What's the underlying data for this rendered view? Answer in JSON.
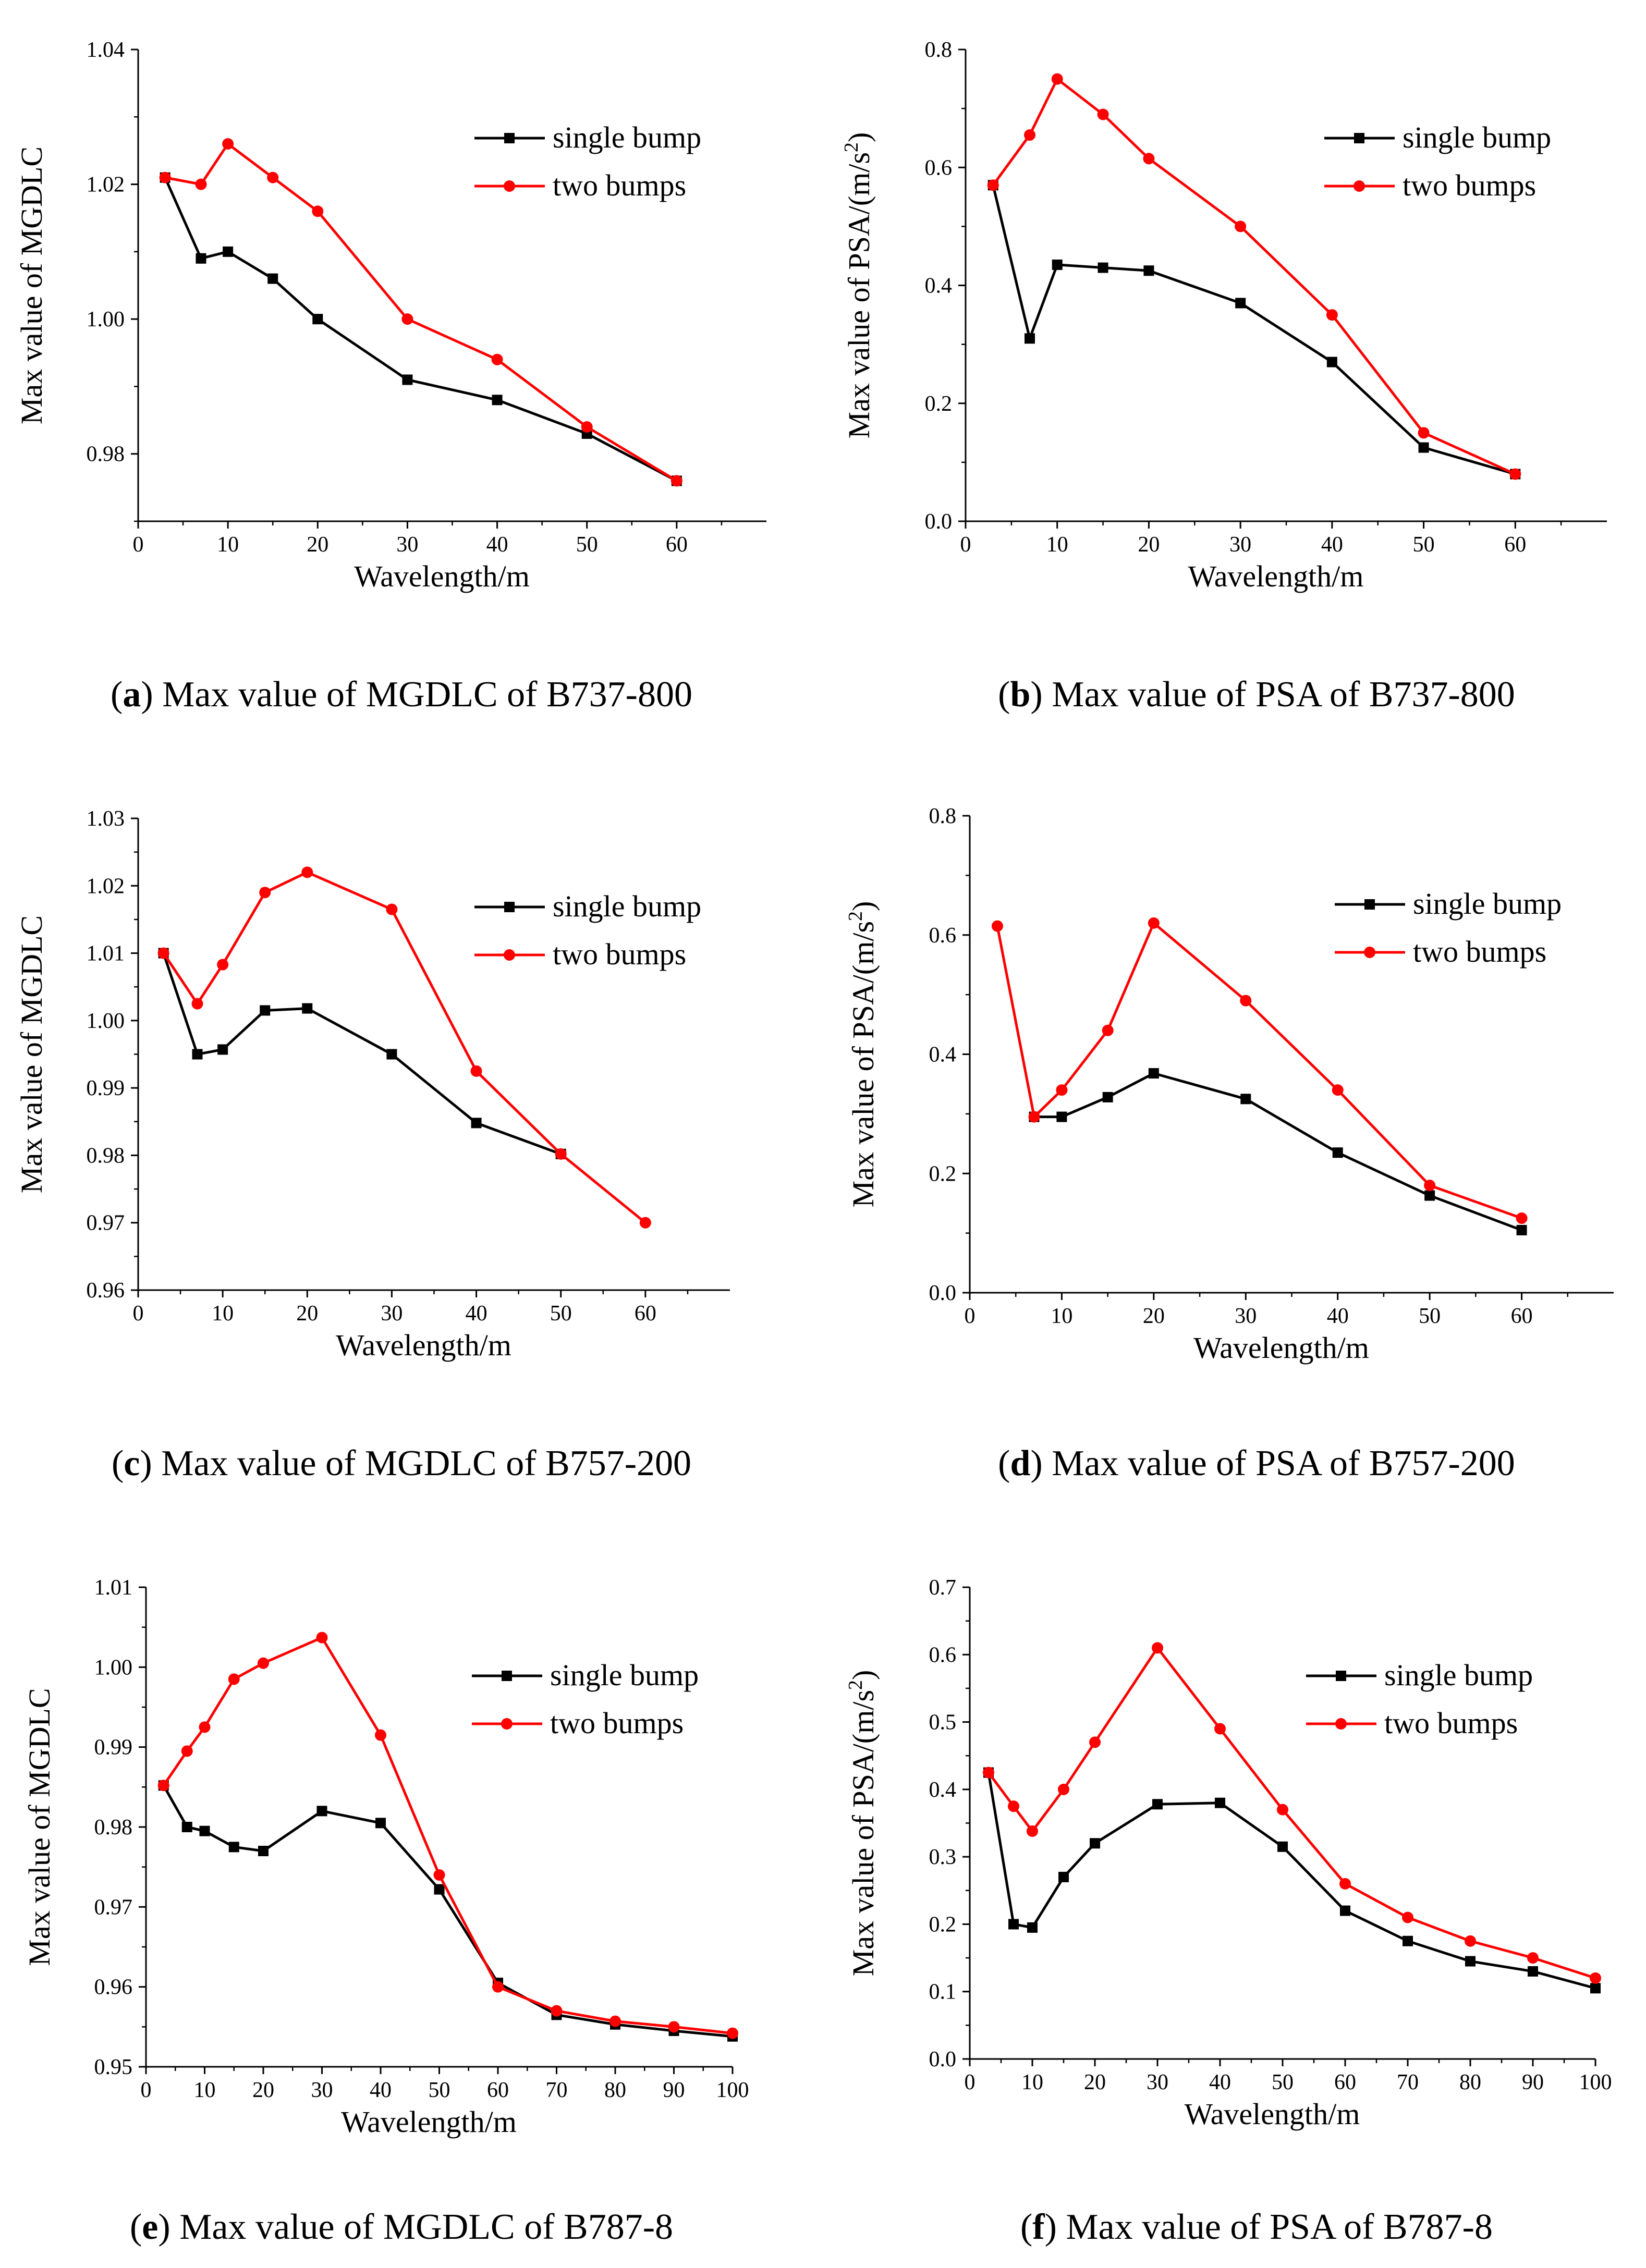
{
  "colors": {
    "single": "#000000",
    "two": "#ff0000",
    "axis": "#000000"
  },
  "chart_data": [
    {
      "id": "a",
      "type": "line",
      "caption_letter": "a",
      "caption_text": " Max value of MGDLC of B737-800",
      "xlabel": "Wavelength/m",
      "ylabel": "Max value of MGDLC",
      "xlim": [
        0,
        70
      ],
      "ylim": [
        0.97,
        1.04
      ],
      "xticks": [
        0,
        10,
        20,
        30,
        40,
        50,
        60
      ],
      "xtick_labels": [
        "0",
        "10",
        "20",
        "30",
        "40",
        "50",
        "60"
      ],
      "yticks": [
        0.98,
        1.0,
        1.02,
        1.04
      ],
      "ytick_labels": [
        "0.98",
        "1.00",
        "1.02",
        "1.04"
      ],
      "legend": {
        "position": "top-right",
        "entries": [
          "single bump",
          "two bumps"
        ]
      },
      "series": [
        {
          "name": "single bump",
          "marker": "square",
          "x": [
            3,
            7,
            10,
            15,
            20,
            30,
            40,
            50,
            60
          ],
          "y": [
            1.021,
            1.009,
            1.01,
            1.006,
            1.0,
            0.991,
            0.988,
            0.983,
            0.976
          ]
        },
        {
          "name": "two bumps",
          "marker": "circle",
          "x": [
            3,
            7,
            10,
            15,
            20,
            30,
            40,
            50,
            60
          ],
          "y": [
            1.021,
            1.02,
            1.026,
            1.021,
            1.016,
            1.0,
            0.994,
            0.984,
            0.976
          ]
        }
      ]
    },
    {
      "id": "b",
      "type": "line",
      "caption_letter": "b",
      "caption_text": " Max value of PSA of B737-800",
      "xlabel": "Wavelength/m",
      "ylabel": "Max value of PSA/(m/s",
      "ylabel_sup": "2",
      "ylabel_end": ")",
      "xlim": [
        0,
        70
      ],
      "ylim": [
        0,
        0.8
      ],
      "xticks": [
        0,
        10,
        20,
        30,
        40,
        50,
        60
      ],
      "xtick_labels": [
        "0",
        "10",
        "20",
        "30",
        "40",
        "50",
        "60"
      ],
      "yticks": [
        0,
        0.2,
        0.4,
        0.6,
        0.8
      ],
      "ytick_labels": [
        "0.0",
        "0.2",
        "0.4",
        "0.6",
        "0.8"
      ],
      "legend": {
        "position": "top-right",
        "entries": [
          "single bump",
          "two bumps"
        ]
      },
      "series": [
        {
          "name": "single bump",
          "marker": "square",
          "x": [
            3,
            7,
            10,
            15,
            20,
            30,
            40,
            50,
            60
          ],
          "y": [
            0.57,
            0.31,
            0.435,
            0.43,
            0.425,
            0.37,
            0.27,
            0.125,
            0.08
          ]
        },
        {
          "name": "two bumps",
          "marker": "circle",
          "x": [
            3,
            7,
            10,
            15,
            20,
            30,
            40,
            50,
            60
          ],
          "y": [
            0.57,
            0.655,
            0.75,
            0.69,
            0.615,
            0.5,
            0.35,
            0.15,
            0.08
          ]
        }
      ]
    },
    {
      "id": "c",
      "type": "line",
      "caption_letter": "c",
      "caption_text": " Max value of MGDLC of B757-200",
      "xlabel": "Wavelength/m",
      "ylabel": "Max value of MGDLC",
      "xlim": [
        0,
        70
      ],
      "ylim": [
        0.96,
        1.03
      ],
      "xticks": [
        0,
        10,
        20,
        30,
        40,
        50,
        60
      ],
      "xtick_labels": [
        "0",
        "10",
        "20",
        "30",
        "40",
        "50",
        "60"
      ],
      "yticks": [
        0.96,
        0.97,
        0.98,
        0.99,
        1.0,
        1.01,
        1.02,
        1.03
      ],
      "ytick_labels": [
        "0.96",
        "0.97",
        "0.98",
        "0.99",
        "1.00",
        "1.01",
        "1.02",
        "1.03"
      ],
      "legend": {
        "position": "top-right",
        "entries": [
          "single bump",
          "two bumps"
        ]
      },
      "series": [
        {
          "name": "single bump",
          "marker": "square",
          "x": [
            3,
            7,
            10,
            15,
            20,
            30,
            40,
            50
          ],
          "y": [
            1.01,
            0.995,
            0.9957,
            1.0015,
            1.0018,
            0.995,
            0.9848,
            0.9802
          ]
        },
        {
          "name": "two bumps",
          "marker": "circle",
          "x": [
            3,
            7,
            10,
            15,
            20,
            30,
            40,
            50,
            60
          ],
          "y": [
            1.01,
            1.0025,
            1.0083,
            1.019,
            1.022,
            1.0165,
            0.9925,
            0.9802,
            0.97
          ]
        }
      ]
    },
    {
      "id": "d",
      "type": "line",
      "caption_letter": "d",
      "caption_text": " Max value of PSA of B757-200",
      "xlabel": "Wavelength/m",
      "ylabel": "Max value of PSA/(m/s",
      "ylabel_sup": "2",
      "ylabel_end": ")",
      "xlim": [
        0,
        70
      ],
      "ylim": [
        0,
        0.8
      ],
      "xticks": [
        0,
        10,
        20,
        30,
        40,
        50,
        60
      ],
      "xtick_labels": [
        "0",
        "10",
        "20",
        "30",
        "40",
        "50",
        "60"
      ],
      "yticks": [
        0,
        0.2,
        0.4,
        0.6,
        0.8
      ],
      "ytick_labels": [
        "0.0",
        "0.2",
        "0.4",
        "0.6",
        "0.8"
      ],
      "legend": {
        "position": "top-right",
        "entries": [
          "single bump",
          "two bumps"
        ]
      },
      "series": [
        {
          "name": "single bump",
          "marker": "square",
          "x": [
            7,
            10,
            15,
            20,
            30,
            40,
            50,
            60
          ],
          "y": [
            0.295,
            0.295,
            0.328,
            0.368,
            0.325,
            0.235,
            0.163,
            0.105
          ]
        },
        {
          "name": "two bumps",
          "marker": "circle",
          "x": [
            3,
            7,
            10,
            15,
            20,
            30,
            40,
            50,
            60
          ],
          "y": [
            0.615,
            0.295,
            0.34,
            0.44,
            0.62,
            0.49,
            0.34,
            0.18,
            0.125
          ]
        }
      ]
    },
    {
      "id": "e",
      "type": "line",
      "caption_letter": "e",
      "caption_text": " Max value of MGDLC of B787-8",
      "xlabel": "Wavelength/m",
      "ylabel": "Max value of MGDLC",
      "xlim": [
        0,
        100
      ],
      "ylim": [
        0.95,
        1.01
      ],
      "xticks": [
        0,
        10,
        20,
        30,
        40,
        50,
        60,
        70,
        80,
        90,
        100
      ],
      "xtick_labels": [
        "0",
        "10",
        "20",
        "30",
        "40",
        "50",
        "60",
        "70",
        "80",
        "90",
        "100"
      ],
      "yticks": [
        0.95,
        0.96,
        0.97,
        0.98,
        0.99,
        1.0,
        1.01
      ],
      "ytick_labels": [
        "0.95",
        "0.96",
        "0.97",
        "0.98",
        "0.99",
        "1.00",
        "1.01"
      ],
      "legend": {
        "position": "top-right",
        "entries": [
          "single bump",
          "two bumps"
        ]
      },
      "series": [
        {
          "name": "single bump",
          "marker": "square",
          "x": [
            3,
            7,
            10,
            15,
            20,
            30,
            40,
            50,
            60,
            70,
            80,
            90,
            100
          ],
          "y": [
            0.9852,
            0.98,
            0.9795,
            0.9775,
            0.977,
            0.982,
            0.9805,
            0.9722,
            0.9605,
            0.9565,
            0.9553,
            0.9545,
            0.9538
          ]
        },
        {
          "name": "two bumps",
          "marker": "circle",
          "x": [
            3,
            7,
            10,
            15,
            20,
            30,
            40,
            50,
            60,
            70,
            80,
            90,
            100
          ],
          "y": [
            0.9852,
            0.9895,
            0.9925,
            0.9985,
            1.0005,
            1.0037,
            0.9915,
            0.974,
            0.96,
            0.957,
            0.9557,
            0.955,
            0.9542
          ]
        }
      ]
    },
    {
      "id": "f",
      "type": "line",
      "caption_letter": "f",
      "caption_text": " Max value of PSA of B787-8",
      "xlabel": "Wavelength/m",
      "ylabel": "Max value of PSA/(m/s",
      "ylabel_sup": "2",
      "ylabel_end": ")",
      "xlim": [
        0,
        100
      ],
      "ylim": [
        0,
        0.7
      ],
      "xticks": [
        0,
        10,
        20,
        30,
        40,
        50,
        60,
        70,
        80,
        90,
        100
      ],
      "xtick_labels": [
        "0",
        "10",
        "20",
        "30",
        "40",
        "50",
        "60",
        "70",
        "80",
        "90",
        "100"
      ],
      "yticks": [
        0,
        0.1,
        0.2,
        0.3,
        0.4,
        0.5,
        0.6,
        0.7
      ],
      "ytick_labels": [
        "0.0",
        "0.1",
        "0.2",
        "0.3",
        "0.4",
        "0.5",
        "0.6",
        "0.7"
      ],
      "legend": {
        "position": "top-right",
        "entries": [
          "single bump",
          "two bumps"
        ]
      },
      "series": [
        {
          "name": "single bump",
          "marker": "square",
          "x": [
            3,
            7,
            10,
            15,
            20,
            30,
            40,
            50,
            60,
            70,
            80,
            90,
            100
          ],
          "y": [
            0.425,
            0.2,
            0.195,
            0.27,
            0.32,
            0.378,
            0.38,
            0.315,
            0.22,
            0.175,
            0.145,
            0.13,
            0.105
          ]
        },
        {
          "name": "two bumps",
          "marker": "circle",
          "x": [
            3,
            7,
            10,
            15,
            20,
            30,
            40,
            50,
            60,
            70,
            80,
            90,
            100
          ],
          "y": [
            0.425,
            0.375,
            0.338,
            0.4,
            0.47,
            0.61,
            0.49,
            0.37,
            0.26,
            0.21,
            0.175,
            0.15,
            0.12
          ]
        }
      ]
    }
  ]
}
